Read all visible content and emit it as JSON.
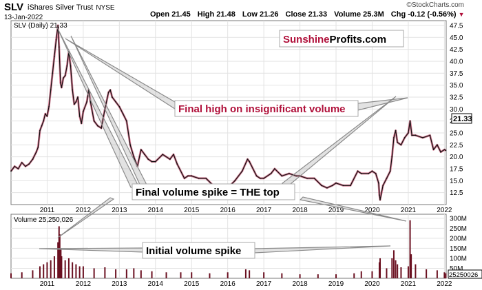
{
  "header": {
    "symbol": "SLV",
    "name": "iShares Silver Trust",
    "exchange": "NYSE",
    "date": "13-Jan-2022",
    "open_label": "Open",
    "open": "21.45",
    "high_label": "High",
    "high": "21.48",
    "low_label": "Low",
    "low": "21.26",
    "close_label": "Close",
    "close": "21.33",
    "volume_label": "Volume",
    "volume": "25.3M",
    "chg_label": "Chg",
    "chg": "-0.12 (-0.56%)",
    "watermark": "©StockCharts.com"
  },
  "logo": {
    "part1": "Sunshine",
    "part2": "Profits.com"
  },
  "price_panel": {
    "legend": "SLV (Daily) 21.33",
    "last_value": "21.33"
  },
  "volume_panel": {
    "legend": "Volume 25,250,026",
    "last_value": "25250026"
  },
  "annotations": {
    "final_high": "Final high on insignificant volume",
    "final_volume_spike": "Final volume spike = THE top",
    "initial_volume_spike": "Initial volume spike"
  },
  "colors": {
    "price": "#111111",
    "accent": "#b0103a",
    "volume": "#6a1020",
    "annotation_text_dark": "#000000"
  },
  "chart_data": [
    {
      "type": "line",
      "title": "SLV (Daily) 21.33",
      "x_axis_labels": [
        "2011",
        "2012",
        "2013",
        "2014",
        "2015",
        "2016",
        "2017",
        "2018",
        "2019",
        "2020",
        "2021",
        "2022"
      ],
      "y_ticks": [
        12.5,
        15.0,
        17.5,
        20.0,
        22.5,
        25.0,
        27.5,
        30.0,
        32.5,
        35.0,
        37.5,
        40.0,
        42.5,
        45.0,
        47.5
      ],
      "ylim": [
        10.0,
        48.5
      ],
      "xlim": [
        2010.0,
        2022.05
      ],
      "x": [
        2010.0,
        2010.1,
        2010.2,
        2010.3,
        2010.4,
        2010.5,
        2010.6,
        2010.7,
        2010.75,
        2010.8,
        2010.85,
        2010.9,
        2010.95,
        2011.0,
        2011.05,
        2011.1,
        2011.15,
        2011.2,
        2011.25,
        2011.3,
        2011.33,
        2011.37,
        2011.4,
        2011.45,
        2011.5,
        2011.55,
        2011.6,
        2011.65,
        2011.7,
        2011.75,
        2011.8,
        2011.85,
        2011.9,
        2011.95,
        2012.0,
        2012.1,
        2012.15,
        2012.2,
        2012.3,
        2012.4,
        2012.5,
        2012.6,
        2012.7,
        2012.75,
        2012.8,
        2012.9,
        2013.0,
        2013.1,
        2013.2,
        2013.3,
        2013.4,
        2013.5,
        2013.6,
        2013.7,
        2013.8,
        2013.9,
        2014.0,
        2014.2,
        2014.4,
        2014.5,
        2014.6,
        2014.8,
        2014.9,
        2015.0,
        2015.2,
        2015.4,
        2015.6,
        2015.8,
        2015.95,
        2016.0,
        2016.2,
        2016.4,
        2016.55,
        2016.6,
        2016.8,
        2016.9,
        2017.0,
        2017.2,
        2017.3,
        2017.5,
        2017.7,
        2017.9,
        2018.0,
        2018.2,
        2018.4,
        2018.6,
        2018.75,
        2018.9,
        2019.0,
        2019.2,
        2019.4,
        2019.6,
        2019.7,
        2019.9,
        2020.0,
        2020.1,
        2020.18,
        2020.2,
        2020.22,
        2020.3,
        2020.4,
        2020.5,
        2020.55,
        2020.6,
        2020.65,
        2020.7,
        2020.8,
        2020.9,
        2021.0,
        2021.05,
        2021.1,
        2021.2,
        2021.4,
        2021.6,
        2021.7,
        2021.8,
        2021.9,
        2022.0,
        2022.04
      ],
      "y": [
        17.0,
        18.0,
        17.5,
        18.8,
        18.0,
        18.5,
        19.5,
        21.0,
        22.0,
        25.5,
        26.5,
        27.5,
        29.0,
        28.5,
        30.5,
        34.0,
        37.5,
        41.0,
        44.5,
        47.5,
        43.0,
        35.5,
        34.5,
        36.5,
        37.0,
        39.0,
        42.0,
        39.0,
        34.0,
        31.0,
        31.5,
        32.5,
        28.5,
        27.0,
        29.5,
        31.5,
        34.0,
        31.5,
        27.5,
        26.5,
        26.0,
        30.0,
        33.5,
        34.0,
        32.5,
        31.5,
        30.5,
        29.0,
        27.5,
        22.5,
        20.0,
        18.0,
        21.5,
        20.5,
        19.5,
        19.0,
        19.0,
        20.5,
        19.5,
        20.5,
        18.5,
        15.5,
        16.0,
        16.0,
        15.5,
        15.5,
        14.0,
        14.0,
        13.5,
        13.5,
        15.0,
        17.0,
        19.5,
        19.0,
        16.0,
        15.5,
        15.5,
        16.5,
        17.5,
        16.0,
        16.5,
        16.0,
        16.0,
        15.5,
        15.5,
        14.0,
        13.5,
        14.0,
        14.5,
        14.0,
        14.0,
        17.0,
        16.5,
        16.5,
        17.0,
        16.5,
        14.5,
        12.0,
        11.0,
        14.0,
        15.5,
        17.0,
        20.0,
        24.0,
        25.5,
        23.0,
        22.5,
        24.0,
        25.0,
        27.5,
        24.5,
        24.5,
        24.0,
        24.5,
        21.5,
        22.5,
        21.0,
        21.5,
        21.33
      ]
    },
    {
      "type": "bar",
      "title": "Volume 25,250,026",
      "x_axis_labels": [
        "2011",
        "2012",
        "2013",
        "2014",
        "2015",
        "2016",
        "2017",
        "2018",
        "2019",
        "2020",
        "2021",
        "2022"
      ],
      "y_ticks": [
        "50M",
        "100M",
        "150M",
        "200M",
        "250M",
        "300M"
      ],
      "ylim": [
        0,
        320
      ],
      "units": "M",
      "x": [
        2010.0,
        2010.3,
        2010.6,
        2010.8,
        2010.9,
        2011.0,
        2011.1,
        2011.2,
        2011.3,
        2011.33,
        2011.35,
        2011.38,
        2011.4,
        2011.5,
        2011.6,
        2011.7,
        2011.8,
        2011.9,
        2012.0,
        2012.3,
        2012.6,
        2012.9,
        2013.2,
        2013.4,
        2013.6,
        2013.9,
        2014.3,
        2014.7,
        2015.0,
        2015.5,
        2016.0,
        2016.5,
        2016.6,
        2017.0,
        2017.5,
        2018.0,
        2018.5,
        2019.0,
        2019.5,
        2019.7,
        2020.0,
        2020.2,
        2020.22,
        2020.4,
        2020.55,
        2020.6,
        2020.65,
        2020.7,
        2020.8,
        2021.0,
        2021.05,
        2021.08,
        2021.2,
        2021.5,
        2021.8,
        2022.0,
        2022.04
      ],
      "values": [
        25,
        30,
        40,
        60,
        70,
        80,
        90,
        110,
        180,
        260,
        220,
        150,
        110,
        90,
        100,
        80,
        70,
        60,
        60,
        50,
        55,
        45,
        45,
        50,
        40,
        35,
        30,
        30,
        30,
        25,
        30,
        45,
        40,
        30,
        25,
        20,
        20,
        20,
        25,
        35,
        35,
        80,
        100,
        50,
        100,
        140,
        90,
        70,
        55,
        60,
        290,
        120,
        70,
        45,
        40,
        30,
        25
      ]
    }
  ]
}
